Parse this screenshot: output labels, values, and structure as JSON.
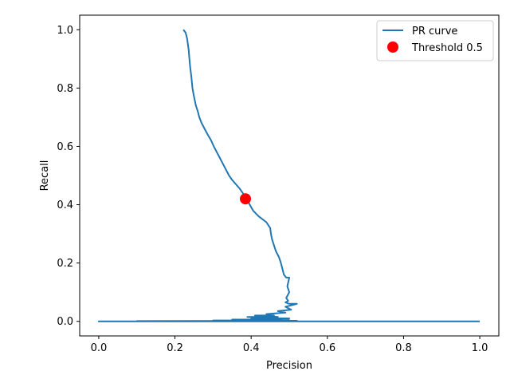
{
  "chart_data": {
    "type": "line",
    "title": "",
    "xlabel": "Precision",
    "ylabel": "Recall",
    "xlim": [
      -0.05,
      1.05
    ],
    "ylim": [
      -0.05,
      1.05
    ],
    "xticks": [
      0.0,
      0.2,
      0.4,
      0.6,
      0.8,
      1.0
    ],
    "yticks": [
      0.0,
      0.2,
      0.4,
      0.6,
      0.8,
      1.0
    ],
    "xtick_labels": [
      "0.0",
      "0.2",
      "0.4",
      "0.6",
      "0.8",
      "1.0"
    ],
    "ytick_labels": [
      "0.0",
      "0.2",
      "0.4",
      "0.6",
      "0.8",
      "1.0"
    ],
    "grid": false,
    "legend_position": "top-right",
    "series": [
      {
        "name": "PR curve",
        "color": "#1f77b4",
        "x": [
          0.222,
          0.228,
          0.232,
          0.234,
          0.236,
          0.238,
          0.24,
          0.243,
          0.246,
          0.25,
          0.255,
          0.26,
          0.264,
          0.27,
          0.278,
          0.286,
          0.295,
          0.302,
          0.31,
          0.318,
          0.326,
          0.334,
          0.342,
          0.35,
          0.36,
          0.37,
          0.378,
          0.385,
          0.392,
          0.405,
          0.42,
          0.44,
          0.45,
          0.452,
          0.455,
          0.46,
          0.465,
          0.473,
          0.478,
          0.482,
          0.486,
          0.492,
          0.5,
          0.495,
          0.5,
          0.492,
          0.497,
          0.49,
          0.5,
          0.52,
          0.49,
          0.505,
          0.47,
          0.49,
          0.44,
          0.46,
          0.41,
          0.47,
          0.39,
          0.5,
          0.4,
          0.48,
          0.35,
          0.5,
          0.3,
          0.52,
          0.1,
          0.5,
          0.0,
          1.0
        ],
        "y": [
          1.0,
          0.99,
          0.97,
          0.95,
          0.93,
          0.9,
          0.87,
          0.84,
          0.8,
          0.77,
          0.74,
          0.72,
          0.7,
          0.68,
          0.66,
          0.64,
          0.62,
          0.6,
          0.58,
          0.56,
          0.54,
          0.52,
          0.5,
          0.485,
          0.47,
          0.455,
          0.44,
          0.425,
          0.41,
          0.38,
          0.36,
          0.34,
          0.32,
          0.3,
          0.28,
          0.26,
          0.24,
          0.22,
          0.2,
          0.18,
          0.16,
          0.15,
          0.15,
          0.12,
          0.1,
          0.08,
          0.07,
          0.065,
          0.06,
          0.06,
          0.05,
          0.04,
          0.035,
          0.03,
          0.025,
          0.02,
          0.02,
          0.015,
          0.015,
          0.01,
          0.01,
          0.006,
          0.006,
          0.004,
          0.003,
          0.002,
          0.001,
          0.0,
          0.0,
          0.0
        ]
      }
    ],
    "markers": [
      {
        "name": "Threshold 0.5",
        "x": 0.385,
        "y": 0.42,
        "color": "#ff0000"
      }
    ]
  }
}
